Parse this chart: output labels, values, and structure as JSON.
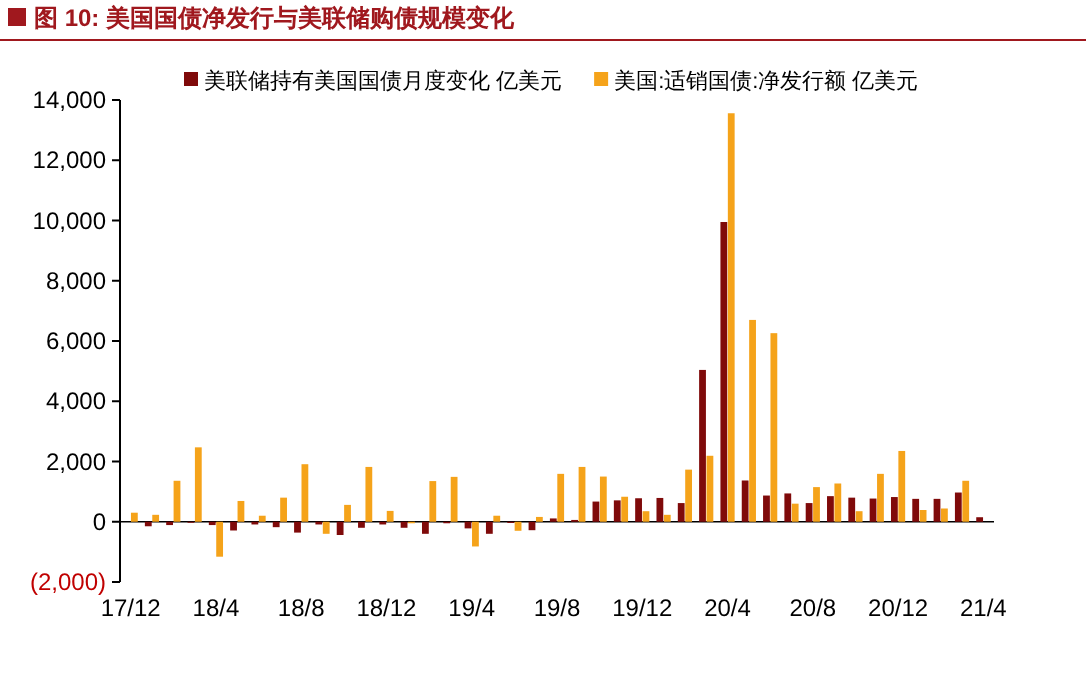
{
  "chart_data": {
    "type": "bar",
    "title": "图 10: 美国国债净发行与美联储购债规模变化",
    "categories": [
      "17/12",
      null,
      null,
      null,
      "18/4",
      null,
      null,
      null,
      "18/8",
      null,
      null,
      null,
      "18/12",
      null,
      null,
      null,
      "19/4",
      null,
      null,
      null,
      "19/8",
      null,
      null,
      null,
      "19/12",
      null,
      null,
      null,
      "20/4",
      null,
      null,
      null,
      "20/8",
      null,
      null,
      null,
      "20/12",
      null,
      null,
      null,
      "21/4"
    ],
    "series": [
      {
        "name": "美联储持有美国国债月度变化 亿美元",
        "color": "#7f0a0a",
        "values": [
          null,
          -150,
          -110,
          -30,
          -110,
          -290,
          -90,
          -180,
          -360,
          -90,
          -440,
          -200,
          -90,
          -200,
          -400,
          -50,
          -220,
          -400,
          -40,
          -280,
          110,
          60,
          670,
          710,
          780,
          790,
          620,
          5040,
          9950,
          1370,
          870,
          940,
          620,
          850,
          800,
          770,
          820,
          760,
          760,
          970,
          150
        ]
      },
      {
        "name": "美国:适销国债:净发行额 亿美元",
        "color": "#f5a31a",
        "values": [
          300,
          230,
          1360,
          2470,
          -1160,
          690,
          200,
          800,
          1910,
          -400,
          560,
          1820,
          360,
          -50,
          1350,
          1490,
          -820,
          200,
          -300,
          160,
          1590,
          1820,
          1500,
          830,
          350,
          230,
          1730,
          2190,
          13560,
          6700,
          6260,
          600,
          1150,
          1270,
          350,
          1590,
          2350,
          390,
          440,
          1360,
          null
        ]
      }
    ],
    "ylim": [
      -2000,
      14000
    ],
    "yticks": [
      {
        "value": -2000,
        "label": "(2,000)"
      },
      {
        "value": 0,
        "label": "0"
      },
      {
        "value": 2000,
        "label": "2,000"
      },
      {
        "value": 4000,
        "label": "4,000"
      },
      {
        "value": 6000,
        "label": "6,000"
      },
      {
        "value": 8000,
        "label": "8,000"
      },
      {
        "value": 10000,
        "label": "10,000"
      },
      {
        "value": 12000,
        "label": "12,000"
      },
      {
        "value": 14000,
        "label": "14,000"
      }
    ],
    "legend": "top"
  }
}
